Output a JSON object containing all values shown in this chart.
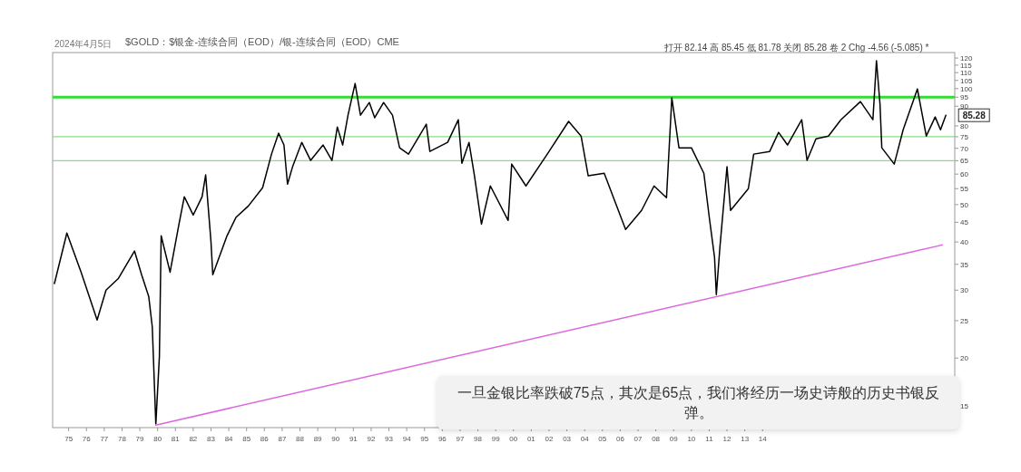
{
  "chart_data": {
    "type": "line",
    "title": "$GOLD：$银金-连续合同（EOD）/银-连续合同（EOD）CME",
    "subtitle": "2024年4月5日",
    "annotations": [
      "打开 82.14 高 85.45 低 81.78 关闭 85.28 卷 2 Chg -4.56 (-5.085) *",
      "一旦金银比率跌破75点，其次是65点，我们将经历一场史诗般的历史书银反弹。",
      {
        "text": "85.28",
        "x": 2024.3,
        "y": 85.28
      }
    ],
    "log": true,
    "xlim": [
      1974.1,
      2024.8
    ],
    "ylim": [
      13.2,
      124
    ],
    "xticks": [
      {
        "value": 1975,
        "label": "75"
      },
      {
        "value": 1976,
        "label": "76"
      },
      {
        "value": 1977,
        "label": "77"
      },
      {
        "value": 1978,
        "label": "78"
      },
      {
        "value": 1979,
        "label": "79"
      },
      {
        "value": 1980,
        "label": "80"
      },
      {
        "value": 1981,
        "label": "81"
      },
      {
        "value": 1982,
        "label": "82"
      },
      {
        "value": 1983,
        "label": "83"
      },
      {
        "value": 1984,
        "label": "84"
      },
      {
        "value": 1985,
        "label": "85"
      },
      {
        "value": 1986,
        "label": "86"
      },
      {
        "value": 1987,
        "label": "87"
      },
      {
        "value": 1988,
        "label": "88"
      },
      {
        "value": 1989,
        "label": "89"
      },
      {
        "value": 1990,
        "label": "90"
      },
      {
        "value": 1991,
        "label": "91"
      },
      {
        "value": 1992,
        "label": "92"
      },
      {
        "value": 1993,
        "label": "93"
      },
      {
        "value": 1994,
        "label": "94"
      },
      {
        "value": 1995,
        "label": "95"
      },
      {
        "value": 1996,
        "label": "96"
      },
      {
        "value": 1997,
        "label": "97"
      },
      {
        "value": 1998,
        "label": "98"
      },
      {
        "value": 1999,
        "label": "99"
      },
      {
        "value": 2000,
        "label": "00"
      },
      {
        "value": 2001,
        "label": "01"
      },
      {
        "value": 2002,
        "label": "02"
      },
      {
        "value": 2003,
        "label": "03"
      },
      {
        "value": 2004,
        "label": "04"
      },
      {
        "value": 2005,
        "label": "05"
      },
      {
        "value": 2006,
        "label": "06"
      },
      {
        "value": 2007,
        "label": "07"
      },
      {
        "value": 2008,
        "label": "08"
      },
      {
        "value": 2009,
        "label": "09"
      },
      {
        "value": 2010,
        "label": "10"
      },
      {
        "value": 2011,
        "label": "11"
      },
      {
        "value": 2012,
        "label": "12"
      },
      {
        "value": 2013,
        "label": "13"
      },
      {
        "value": 2014,
        "label": "14"
      }
    ],
    "yticks": [
      15,
      20,
      25,
      30,
      35,
      40,
      45,
      50,
      55,
      60,
      65,
      70,
      75,
      80,
      90,
      95,
      100,
      105,
      110,
      115,
      120
    ],
    "ref_lines": [
      {
        "axis": "y",
        "value": 95,
        "color": "#33dd33"
      },
      {
        "axis": "y",
        "value": 75,
        "color": "#88dd88"
      },
      {
        "axis": "y",
        "value": 65,
        "color": "#88dd88"
      }
    ],
    "x": [
      1974.2,
      1974.9,
      1975.7,
      1976.6,
      1977.1,
      1977.8,
      1978.7,
      1979.1,
      1979.5,
      1979.7,
      1979.9,
      1980.1,
      1980.2,
      1980.7,
      1981.2,
      1981.5,
      1982.0,
      1982.5,
      1982.7,
      1983.0,
      1983.1,
      1983.9,
      1984.4,
      1985.1,
      1985.9,
      1986.4,
      1986.8,
      1987.1,
      1987.3,
      1987.6,
      1988.1,
      1988.6,
      1989.3,
      1989.8,
      1990.1,
      1990.4,
      1990.7,
      1991.1,
      1991.4,
      1991.9,
      1992.2,
      1992.7,
      1993.2,
      1993.6,
      1994.1,
      1995.1,
      1995.3,
      1996.3,
      1996.9,
      1997.1,
      1997.5,
      1997.8,
      1998.2,
      1998.7,
      1999.7,
      1999.9,
      2000.7,
      2001.9,
      2003.1,
      2003.8,
      2004.2,
      2005.1,
      2006.3,
      2007.2,
      2007.9,
      2008.6,
      2008.9,
      2009.3,
      2010.0,
      2010.7,
      2011.0,
      2011.3,
      2011.4,
      2011.6,
      2012.0,
      2012.2,
      2013.2,
      2013.5,
      2014.4,
      2014.9,
      2015.4,
      2016.2,
      2016.5,
      2017.0,
      2017.7,
      2018.4,
      2019.5,
      2020.2,
      2020.4,
      2020.6,
      2020.7,
      2021.4,
      2021.9,
      2022.7,
      2023.2,
      2023.7,
      2024.0,
      2024.3
    ],
    "series": [
      {
        "color": "#000000",
        "values": [
          31.2,
          42.2,
          33.4,
          25.1,
          30.0,
          32.2,
          37.9,
          32.9,
          28.9,
          24.1,
          13.5,
          20.2,
          41.5,
          33.4,
          44.5,
          52.4,
          47.0,
          52.4,
          59.7,
          40.0,
          32.9,
          41.5,
          46.3,
          49.6,
          55.3,
          67.6,
          76.6,
          71.4,
          56.5,
          63.0,
          72.5,
          65.1,
          71.4,
          65.1,
          79.5,
          71.4,
          85.3,
          103.1,
          85.3,
          92.0,
          84.0,
          92.0,
          85.3,
          70.2,
          67.6,
          80.8,
          68.7,
          72.5,
          83.0,
          64.0,
          72.5,
          59.7,
          44.5,
          55.9,
          45.5,
          63.7,
          55.9,
          67.6,
          82.2,
          75.3,
          59.4,
          60.3,
          43.1,
          48.3,
          55.9,
          52.1,
          94.6,
          70.2,
          70.2,
          60.3,
          46.5,
          36.5,
          29.2,
          38.7,
          62.7,
          48.3,
          55.0,
          67.6,
          68.7,
          77.0,
          71.4,
          83.0,
          65.1,
          74.1,
          75.3,
          83.0,
          92.5,
          83.0,
          118.1,
          91.0,
          70.2,
          63.7,
          78.2,
          99.8,
          75.3,
          84.4,
          78.2,
          85.28
        ]
      },
      {
        "type": "line",
        "color": "#dd66dd",
        "x": [
          1979.9,
          2024.1
        ],
        "values": [
          13.4,
          39.3
        ]
      }
    ]
  }
}
